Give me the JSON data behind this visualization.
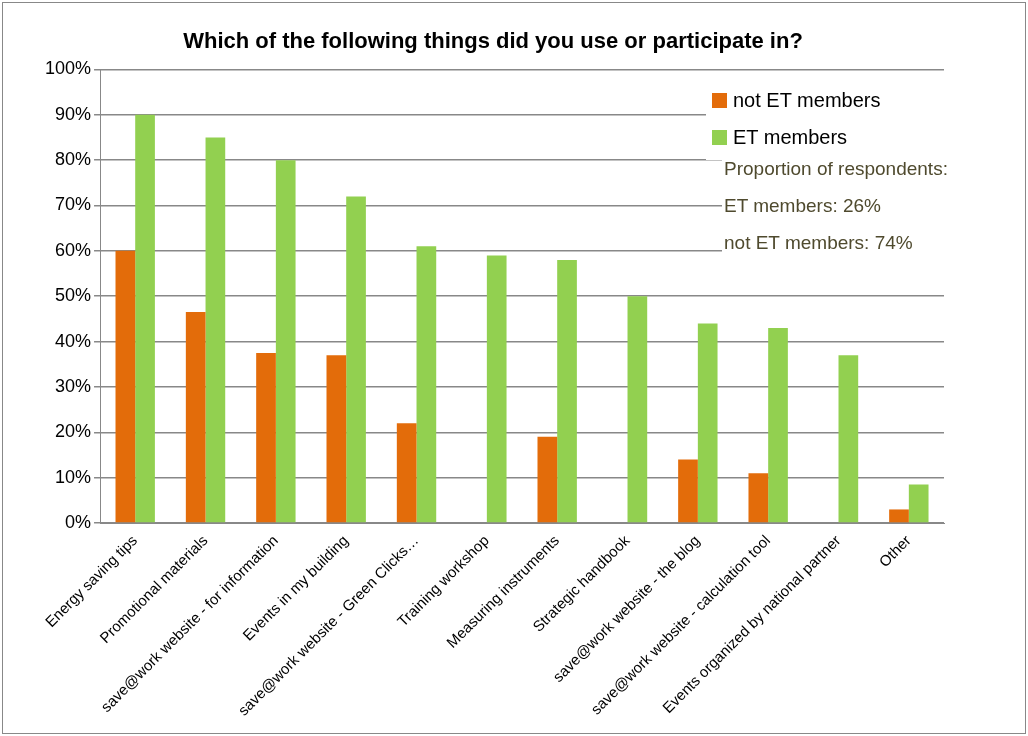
{
  "chart_data": {
    "type": "bar",
    "title": "Which of the following things did you use or participate in?",
    "categories": [
      "Energy saving tips",
      "Promotional materials",
      "save@work website - for information",
      "Events in my building",
      "save@work website - Green Clicks…",
      "Training workshop",
      "Measuring instruments",
      "Strategic handbook",
      "save@work website - the blog",
      "save@work website - calculation tool",
      "Events organized by national partner",
      "Other"
    ],
    "series": [
      {
        "name": "not ET members",
        "color": "#e36c0a",
        "values": [
          60,
          46.5,
          37.5,
          37,
          22,
          null,
          19,
          null,
          14,
          11,
          null,
          3
        ]
      },
      {
        "name": "ET members",
        "color": "#92d050",
        "values": [
          90,
          85,
          80,
          72,
          61,
          59,
          58,
          50,
          44,
          43,
          37,
          8.5
        ]
      }
    ],
    "ylim": [
      0,
      100
    ],
    "yticks": [
      {
        "value": 0,
        "label": "0%"
      },
      {
        "value": 10,
        "label": "10%"
      },
      {
        "value": 20,
        "label": "20%"
      },
      {
        "value": 30,
        "label": "30%"
      },
      {
        "value": 40,
        "label": "40%"
      },
      {
        "value": 50,
        "label": "50%"
      },
      {
        "value": 60,
        "label": "60%"
      },
      {
        "value": 70,
        "label": "70%"
      },
      {
        "value": 80,
        "label": "80%"
      },
      {
        "value": 90,
        "label": "90%"
      },
      {
        "value": 100,
        "label": "100%"
      }
    ],
    "grid": "y",
    "legend": "top right",
    "annotations": [
      "Proportion of respondents:",
      "ET members: 26%",
      "not ET members: 74%"
    ]
  }
}
